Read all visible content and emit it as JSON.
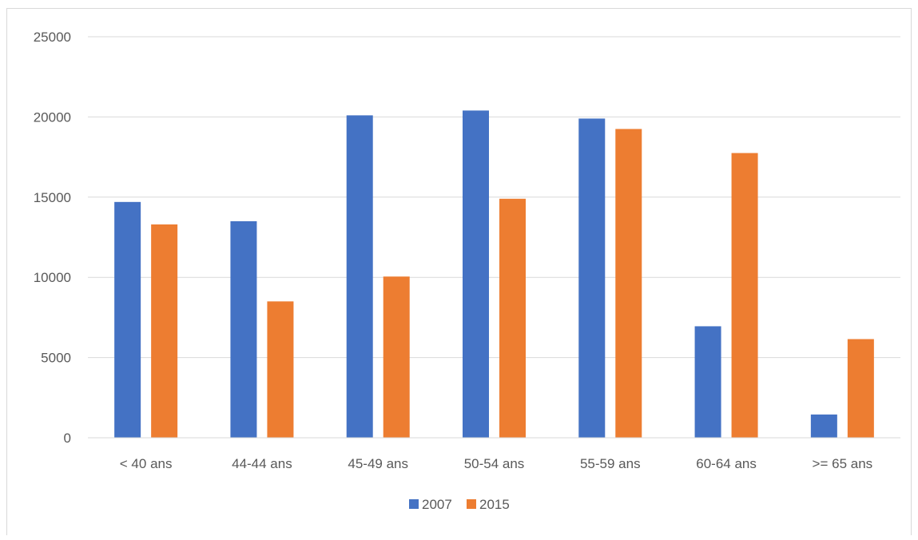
{
  "chart_data": {
    "type": "bar",
    "title": "",
    "xlabel": "",
    "ylabel": "",
    "categories": [
      "< 40 ans",
      "44-44 ans",
      "45-49 ans",
      "50-54 ans",
      "55-59 ans",
      "60-64 ans",
      ">= 65 ans"
    ],
    "series": [
      {
        "name": "2007",
        "color": "#4472C4",
        "values": [
          14700,
          13500,
          20100,
          20400,
          19900,
          6950,
          1450
        ]
      },
      {
        "name": "2015",
        "color": "#ED7D31",
        "values": [
          13300,
          8500,
          10050,
          14900,
          19250,
          17750,
          6150
        ]
      }
    ],
    "ylim": [
      0,
      25000
    ],
    "yticks": [
      0,
      5000,
      10000,
      15000,
      20000,
      25000
    ],
    "grid": true,
    "legend_position": "bottom"
  }
}
